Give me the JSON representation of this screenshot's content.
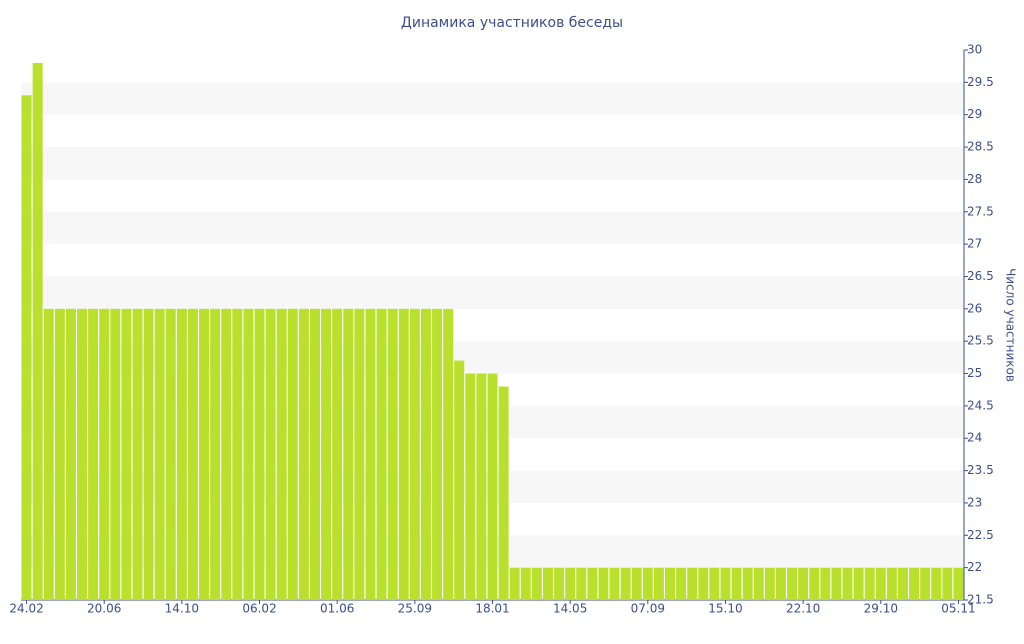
{
  "chart_data": {
    "type": "bar",
    "title": "Динамика участников беседы",
    "y_label": "Число участников",
    "categories": [
      "24.02",
      null,
      null,
      null,
      null,
      null,
      null,
      "20.06",
      null,
      null,
      null,
      null,
      null,
      null,
      "14.10",
      null,
      null,
      null,
      null,
      null,
      null,
      "06.02",
      null,
      null,
      null,
      null,
      null,
      null,
      "01.06",
      null,
      null,
      null,
      null,
      null,
      null,
      "25.09",
      null,
      null,
      null,
      null,
      null,
      null,
      "18.01",
      null,
      null,
      null,
      null,
      null,
      null,
      "14.05",
      null,
      null,
      null,
      null,
      null,
      null,
      "07.09",
      null,
      null,
      null,
      null,
      null,
      null,
      "15.10",
      null,
      null,
      null,
      null,
      null,
      null,
      "22.10",
      null,
      null,
      null,
      null,
      null,
      null,
      "29.10",
      null,
      null,
      null,
      null,
      null,
      null,
      "05.11"
    ],
    "values": [
      29.3,
      29.8,
      26,
      26,
      26,
      26,
      26,
      26,
      26,
      26,
      26,
      26,
      26,
      26,
      26,
      26,
      26,
      26,
      26,
      26,
      26,
      26,
      26,
      26,
      26,
      26,
      26,
      26,
      26,
      26,
      26,
      26,
      26,
      26,
      26,
      26,
      26,
      26,
      26,
      25.2,
      25,
      25,
      25,
      24.8,
      22,
      22,
      22,
      22,
      22,
      22,
      22,
      22,
      22,
      22,
      22,
      22,
      22,
      22,
      22,
      22,
      22,
      22,
      22,
      22,
      22,
      22,
      22,
      22,
      22,
      22,
      22,
      22,
      22,
      22,
      22,
      22,
      22,
      22,
      22,
      22,
      22,
      22,
      22,
      22,
      22
    ],
    "color": "#b8e02c",
    "ylim": [
      21.5,
      30
    ],
    "yticks": [
      21.5,
      22,
      22.5,
      23,
      23.5,
      24,
      24.5,
      25,
      25.5,
      26,
      26.5,
      27,
      27.5,
      28,
      28.5,
      29,
      29.5,
      30
    ],
    "grid": true
  }
}
